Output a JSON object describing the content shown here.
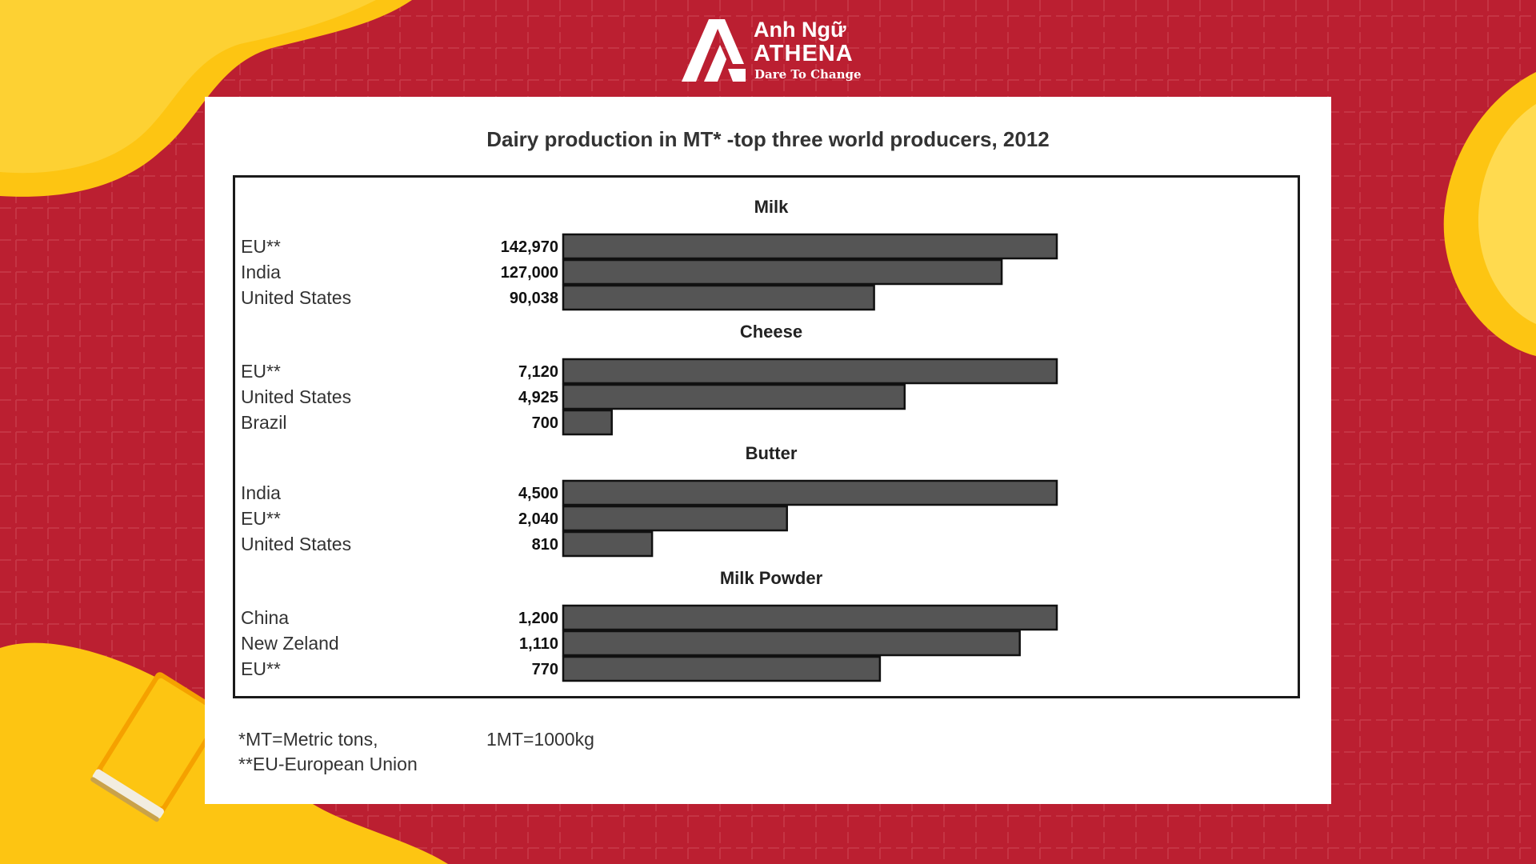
{
  "brand": {
    "name_line1": "Anh Ngữ",
    "name_line2": "ATHENA",
    "slogan": "Dare To Change",
    "primary_color": "#bb1f31",
    "accent_color": "#fdc512"
  },
  "chart_data": {
    "type": "bar",
    "orientation": "horizontal",
    "title": "Dairy production in MT*  -top three world producers, 2012",
    "bar_color": "#555555",
    "groups": [
      {
        "name": "Milk",
        "categories": [
          "EU**",
          "India",
          "United States"
        ],
        "values": [
          142970,
          127000,
          90038
        ],
        "value_labels": [
          "142,970",
          "127,000",
          "90,038"
        ]
      },
      {
        "name": "Cheese",
        "categories": [
          "EU**",
          "United States",
          "Brazil"
        ],
        "values": [
          7120,
          4925,
          700
        ],
        "value_labels": [
          "7,120",
          "4,925",
          "700"
        ]
      },
      {
        "name": "Butter",
        "categories": [
          "India",
          "EU**",
          "United States"
        ],
        "values": [
          4500,
          2040,
          810
        ],
        "value_labels": [
          "4,500",
          "2,040",
          "810"
        ]
      },
      {
        "name": "Milk Powder",
        "categories": [
          "China",
          "New Zeland",
          "EU**"
        ],
        "values": [
          1200,
          1110,
          770
        ],
        "value_labels": [
          "1,200",
          "1,110",
          "770"
        ]
      }
    ]
  },
  "footnotes": {
    "mt": "*MT=Metric tons,",
    "eu": "**EU-European Union",
    "conversion": "1MT=1000kg"
  }
}
